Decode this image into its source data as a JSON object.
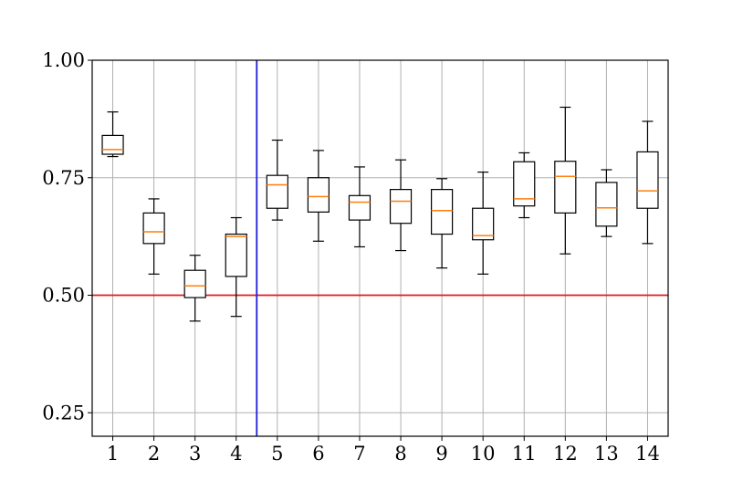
{
  "chart_data": {
    "type": "boxplot",
    "title": "",
    "xlabel": "",
    "ylabel": "",
    "ylim": [
      0.2,
      1.0
    ],
    "yticks": [
      0.25,
      0.5,
      0.75,
      1.0
    ],
    "ytick_labels": [
      "0.25",
      "0.50",
      "0.75",
      "1.00"
    ],
    "categories": [
      "1",
      "2",
      "3",
      "4",
      "5",
      "6",
      "7",
      "8",
      "9",
      "10",
      "11",
      "12",
      "13",
      "14"
    ],
    "boxes": [
      {
        "whislo": 0.795,
        "q1": 0.8,
        "med": 0.81,
        "q3": 0.84,
        "whishi": 0.89
      },
      {
        "whislo": 0.545,
        "q1": 0.61,
        "med": 0.635,
        "q3": 0.675,
        "whishi": 0.705
      },
      {
        "whislo": 0.445,
        "q1": 0.495,
        "med": 0.52,
        "q3": 0.553,
        "whishi": 0.585
      },
      {
        "whislo": 0.455,
        "q1": 0.54,
        "med": 0.625,
        "q3": 0.63,
        "whishi": 0.665
      },
      {
        "whislo": 0.66,
        "q1": 0.685,
        "med": 0.735,
        "q3": 0.755,
        "whishi": 0.83
      },
      {
        "whislo": 0.615,
        "q1": 0.677,
        "med": 0.71,
        "q3": 0.75,
        "whishi": 0.808
      },
      {
        "whislo": 0.603,
        "q1": 0.66,
        "med": 0.698,
        "q3": 0.712,
        "whishi": 0.773
      },
      {
        "whislo": 0.595,
        "q1": 0.653,
        "med": 0.7,
        "q3": 0.725,
        "whishi": 0.788
      },
      {
        "whislo": 0.558,
        "q1": 0.63,
        "med": 0.68,
        "q3": 0.725,
        "whishi": 0.748
      },
      {
        "whislo": 0.545,
        "q1": 0.618,
        "med": 0.627,
        "q3": 0.685,
        "whishi": 0.762
      },
      {
        "whislo": 0.665,
        "q1": 0.69,
        "med": 0.705,
        "q3": 0.784,
        "whishi": 0.803
      },
      {
        "whislo": 0.588,
        "q1": 0.675,
        "med": 0.753,
        "q3": 0.785,
        "whishi": 0.9
      },
      {
        "whislo": 0.625,
        "q1": 0.647,
        "med": 0.686,
        "q3": 0.74,
        "whishi": 0.767
      },
      {
        "whislo": 0.61,
        "q1": 0.685,
        "med": 0.722,
        "q3": 0.805,
        "whishi": 0.87
      }
    ],
    "reference_lines": [
      {
        "axis": "y",
        "value": 0.5,
        "color": "#e41a1c"
      },
      {
        "axis": "x",
        "value": 4.5,
        "color": "#1f1fd6"
      }
    ],
    "grid": true,
    "colors": {
      "median": "#ff7f0e",
      "box": "#000000",
      "grid": "#b0b0b0"
    }
  }
}
